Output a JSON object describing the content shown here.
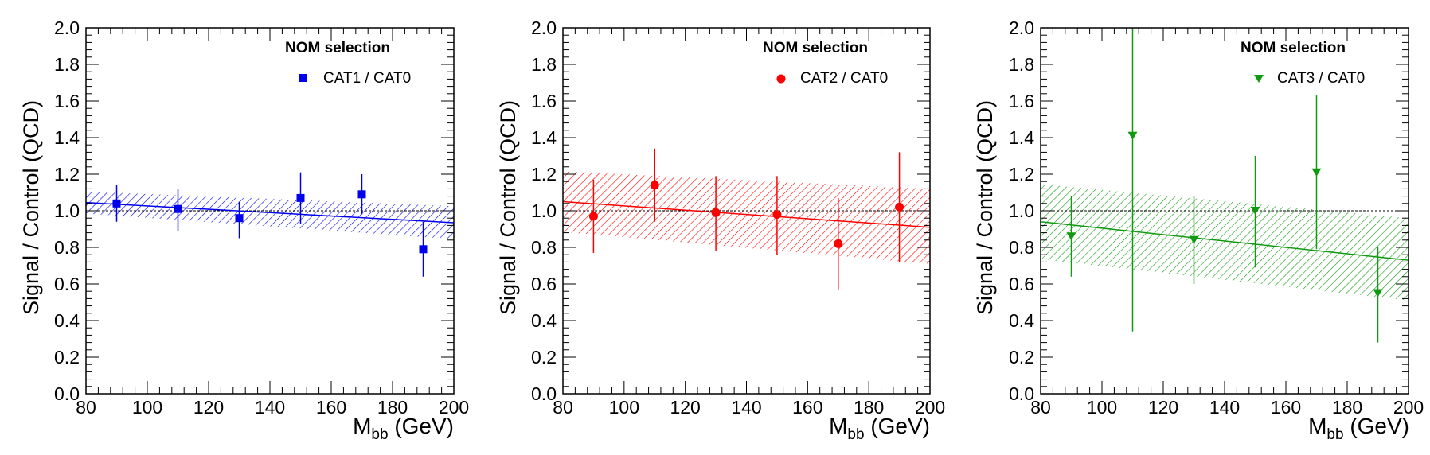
{
  "chart_data": [
    {
      "type": "scatter",
      "legend_title": "NOM selection",
      "xlabel_main": "M",
      "xlabel_sub": "bb",
      "xlabel_unit": "(GeV)",
      "ylabel": "Signal / Control (QCD)",
      "xlim": [
        80,
        200
      ],
      "ylim": [
        0,
        2.0
      ],
      "xticks": [
        "80",
        "100",
        "120",
        "140",
        "160",
        "180",
        "200"
      ],
      "yticks": [
        "0.0",
        "0.2",
        "0.4",
        "0.6",
        "0.8",
        "1.0",
        "1.2",
        "1.4",
        "1.6",
        "1.8",
        "2.0"
      ],
      "reference_line": 1.0,
      "marker": "square",
      "color": "#0000ee",
      "series": [
        {
          "name": "CAT1 / CAT0",
          "x": [
            90,
            110,
            130,
            150,
            170,
            190
          ],
          "y": [
            1.04,
            1.01,
            0.96,
            1.07,
            1.09,
            0.79
          ],
          "err_low": [
            0.1,
            0.12,
            0.11,
            0.14,
            0.11,
            0.15
          ],
          "err_high": [
            0.1,
            0.11,
            0.09,
            0.14,
            0.11,
            0.15
          ]
        }
      ],
      "fit": {
        "x": [
          80,
          200
        ],
        "y": [
          1.045,
          0.935
        ],
        "band_low": [
          0.985,
          0.845
        ],
        "band_high": [
          1.105,
          1.025
        ]
      }
    },
    {
      "type": "scatter",
      "legend_title": "NOM selection",
      "xlabel_main": "M",
      "xlabel_sub": "bb",
      "xlabel_unit": "(GeV)",
      "ylabel": "Signal / Control (QCD)",
      "xlim": [
        80,
        200
      ],
      "ylim": [
        0,
        2.0
      ],
      "xticks": [
        "80",
        "100",
        "120",
        "140",
        "160",
        "180",
        "200"
      ],
      "yticks": [
        "0.0",
        "0.2",
        "0.4",
        "0.6",
        "0.8",
        "1.0",
        "1.2",
        "1.4",
        "1.6",
        "1.8",
        "2.0"
      ],
      "reference_line": 1.0,
      "marker": "circle",
      "color": "#ff0000",
      "series": [
        {
          "name": "CAT2 / CAT0",
          "x": [
            90,
            110,
            130,
            150,
            170,
            190
          ],
          "y": [
            0.97,
            1.14,
            0.99,
            0.98,
            0.82,
            1.02
          ],
          "err_low": [
            0.2,
            0.2,
            0.21,
            0.22,
            0.25,
            0.3
          ],
          "err_high": [
            0.2,
            0.2,
            0.2,
            0.21,
            0.25,
            0.3
          ]
        }
      ],
      "fit": {
        "x": [
          80,
          200
        ],
        "y": [
          1.05,
          0.91
        ],
        "band_low": [
          0.885,
          0.71
        ],
        "band_high": [
          1.215,
          1.12
        ]
      }
    },
    {
      "type": "scatter",
      "legend_title": "NOM selection",
      "xlabel_main": "M",
      "xlabel_sub": "bb",
      "xlabel_unit": "(GeV)",
      "ylabel": "Signal / Control (QCD)",
      "xlim": [
        80,
        200
      ],
      "ylim": [
        0,
        2.0
      ],
      "xticks": [
        "80",
        "100",
        "120",
        "140",
        "160",
        "180",
        "200"
      ],
      "yticks": [
        "0.0",
        "0.2",
        "0.4",
        "0.6",
        "0.8",
        "1.0",
        "1.2",
        "1.4",
        "1.6",
        "1.8",
        "2.0"
      ],
      "reference_line": 1.0,
      "marker": "triangle-down",
      "color": "#109a10",
      "series": [
        {
          "name": "CAT3 / CAT0",
          "x": [
            90,
            110,
            130,
            150,
            170,
            190
          ],
          "y": [
            0.86,
            1.41,
            0.84,
            1.0,
            1.21,
            0.55
          ],
          "err_low": [
            0.22,
            1.07,
            0.24,
            0.31,
            0.42,
            0.27
          ],
          "err_high": [
            0.22,
            0.59,
            0.24,
            0.3,
            0.42,
            0.25
          ]
        }
      ],
      "fit": {
        "x": [
          80,
          200
        ],
        "y": [
          0.94,
          0.73
        ],
        "band_low": [
          0.735,
          0.51
        ],
        "band_high": [
          1.145,
          0.96
        ]
      }
    }
  ]
}
